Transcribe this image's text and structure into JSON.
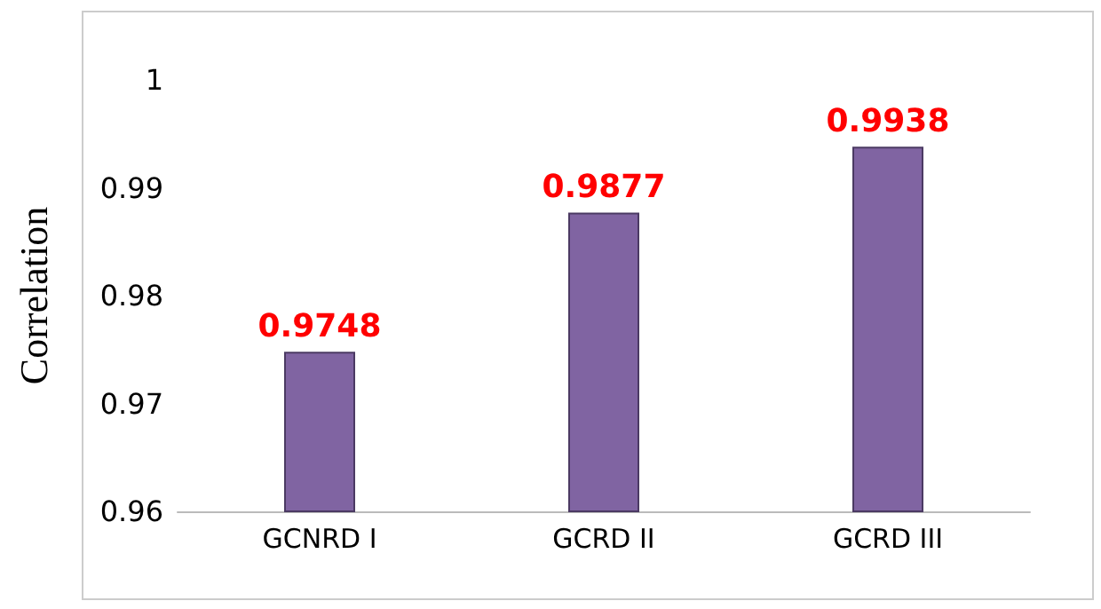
{
  "chart_data": {
    "type": "bar",
    "ylabel": "Correlation",
    "categories": [
      "GCNRD I",
      "GCRD II",
      "GCRD III"
    ],
    "values": [
      0.9748,
      0.9877,
      0.9938
    ],
    "color": "#8064a2",
    "ylim": [
      0.96,
      1
    ],
    "yticks": [
      0.96,
      0.97,
      0.98,
      0.99,
      1
    ],
    "grid": false,
    "data_labels": true
  }
}
